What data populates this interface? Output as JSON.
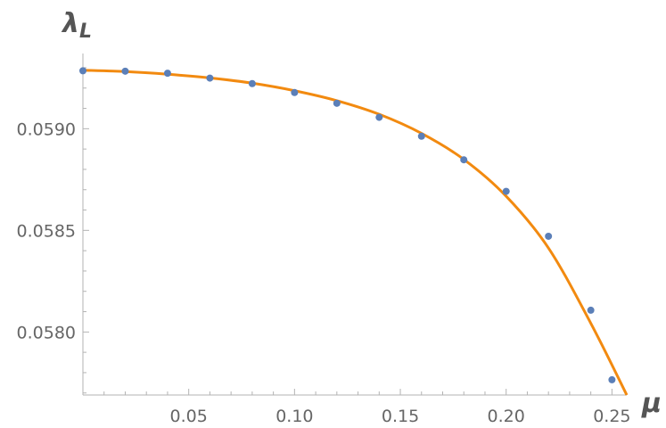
{
  "chart_data": {
    "type": "scatter",
    "xlabel": "μ",
    "ylabel": "λ",
    "ylabel_subscript": "L",
    "xlim": [
      0,
      0.257
    ],
    "ylim": [
      0.05769,
      0.05937
    ],
    "x_ticks": [
      {
        "value": 0.05,
        "label": "0.05"
      },
      {
        "value": 0.1,
        "label": "0.10"
      },
      {
        "value": 0.15,
        "label": "0.15"
      },
      {
        "value": 0.2,
        "label": "0.20"
      },
      {
        "value": 0.25,
        "label": "0.25"
      }
    ],
    "y_ticks": [
      {
        "value": 0.058,
        "label": "0.0580"
      },
      {
        "value": 0.0585,
        "label": "0.0585"
      },
      {
        "value": 0.059,
        "label": "0.0590"
      }
    ],
    "grid": false,
    "series": [
      {
        "kind": "points",
        "color": "#5b7fb8",
        "x": [
          0.0,
          0.02,
          0.04,
          0.06,
          0.08,
          0.1,
          0.12,
          0.14,
          0.16,
          0.18,
          0.2,
          0.22,
          0.24,
          0.25
        ],
        "y": [
          0.059285,
          0.059283,
          0.059273,
          0.059249,
          0.059222,
          0.059178,
          0.059125,
          0.059056,
          0.058963,
          0.058847,
          0.058692,
          0.058471,
          0.058107,
          0.057765
        ]
      },
      {
        "kind": "line",
        "color": "#f28a10",
        "x": [
          0.0,
          0.02,
          0.04,
          0.06,
          0.08,
          0.1,
          0.12,
          0.14,
          0.16,
          0.18,
          0.2,
          0.22,
          0.24,
          0.257
        ],
        "y": [
          0.059288,
          0.059281,
          0.059268,
          0.05925,
          0.059224,
          0.059187,
          0.059138,
          0.059071,
          0.058977,
          0.058849,
          0.058668,
          0.058413,
          0.058043,
          0.05769
        ]
      }
    ]
  }
}
